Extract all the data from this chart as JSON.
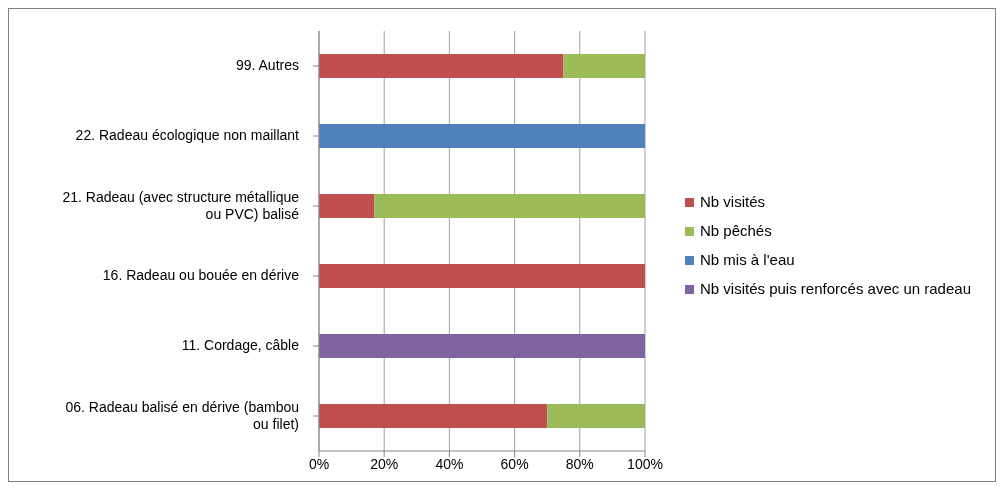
{
  "chart_data": {
    "type": "bar",
    "orientation": "horizontal",
    "stacked": true,
    "categories": [
      "99. Autres",
      "22. Radeau écologique non maillant",
      "21. Radeau (avec structure métallique ou PVC) balisé",
      "16. Radeau ou bouée en dérive",
      "11. Cordage, câble",
      "06. Radeau balisé en dérive (bambou ou filet)"
    ],
    "series": [
      {
        "name": "Nb visités",
        "color": "#c0504d",
        "values": [
          75,
          null,
          17,
          100,
          null,
          70
        ]
      },
      {
        "name": "Nb pêchés",
        "color": "#9bbb59",
        "values": [
          25,
          null,
          83,
          null,
          null,
          30
        ]
      },
      {
        "name": "Nb mis à l'eau",
        "color": "#4f81bd",
        "values": [
          null,
          100,
          null,
          null,
          null,
          null
        ]
      },
      {
        "name": "Nb visités puis renforcés avec un radeau",
        "color": "#8064a2",
        "values": [
          null,
          null,
          null,
          null,
          100,
          null
        ]
      }
    ],
    "xlim": [
      0,
      100
    ],
    "xticks": [
      {
        "value": 0,
        "label": "0%"
      },
      {
        "value": 20,
        "label": "20%"
      },
      {
        "value": 40,
        "label": "40%"
      },
      {
        "value": 60,
        "label": "60%"
      },
      {
        "value": 80,
        "label": "80%"
      },
      {
        "value": 100,
        "label": "100%"
      }
    ],
    "grid": "x",
    "legend": "right"
  }
}
